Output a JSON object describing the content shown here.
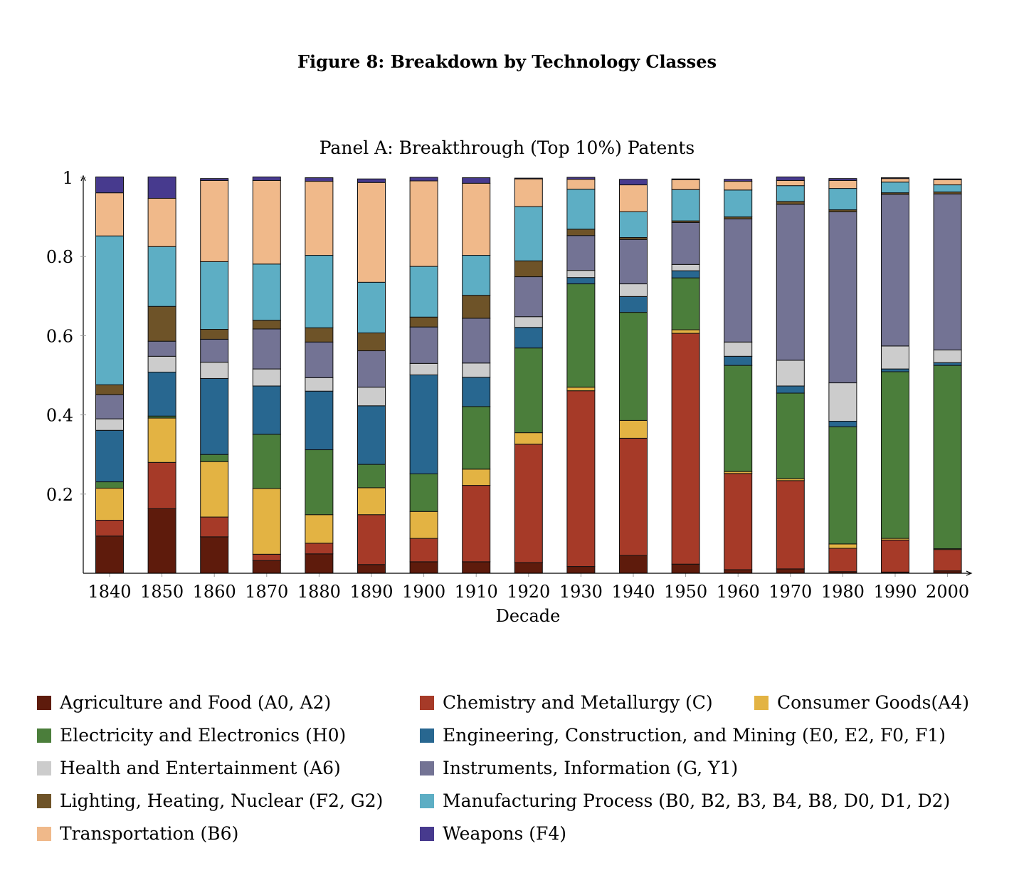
{
  "figure_title": "Figure 8: Breakdown by Technology Classes",
  "chart_data": {
    "type": "bar",
    "stacked": true,
    "title": "Panel A: Breakthrough (Top 10%) Patents",
    "xlabel": "Decade",
    "ylabel": "",
    "ylim": [
      0,
      1
    ],
    "yticks": [
      0.2,
      0.4,
      0.6,
      0.8,
      1
    ],
    "ytick_labels": [
      "0.2",
      "0.4",
      "0.6",
      "0.8",
      "1"
    ],
    "grid": false,
    "legend_position": "bottom",
    "categories": [
      "1840",
      "1850",
      "1860",
      "1870",
      "1880",
      "1890",
      "1900",
      "1910",
      "1920",
      "1930",
      "1940",
      "1950",
      "1960",
      "1970",
      "1980",
      "1990",
      "2000"
    ],
    "series": [
      {
        "name": "Agriculture and Food (A0, A2)",
        "color": "#5e1b0c",
        "values": [
          0.094,
          0.163,
          0.092,
          0.032,
          0.049,
          0.022,
          0.029,
          0.029,
          0.027,
          0.017,
          0.045,
          0.023,
          0.009,
          0.011,
          0.004,
          0.003,
          0.006
        ]
      },
      {
        "name": "Chemistry and Metallurgy (C)",
        "color": "#a63a28",
        "values": [
          0.04,
          0.117,
          0.05,
          0.016,
          0.027,
          0.126,
          0.059,
          0.193,
          0.299,
          0.444,
          0.296,
          0.583,
          0.243,
          0.223,
          0.059,
          0.081,
          0.054
        ]
      },
      {
        "name": "Consumer Goods(A4)",
        "color": "#e3b343",
        "values": [
          0.081,
          0.112,
          0.14,
          0.166,
          0.072,
          0.068,
          0.068,
          0.041,
          0.029,
          0.009,
          0.045,
          0.009,
          0.005,
          0.005,
          0.011,
          0.004,
          0.002
        ]
      },
      {
        "name": "Electricity and Electronics (H0)",
        "color": "#4b7e3b",
        "values": [
          0.016,
          0.005,
          0.018,
          0.137,
          0.164,
          0.059,
          0.095,
          0.158,
          0.214,
          0.261,
          0.273,
          0.131,
          0.268,
          0.216,
          0.296,
          0.421,
          0.463
        ]
      },
      {
        "name": "Engineering, Construction, and Mining (E0, E2, F0, F1)",
        "color": "#286790",
        "values": [
          0.13,
          0.111,
          0.192,
          0.122,
          0.148,
          0.148,
          0.25,
          0.074,
          0.052,
          0.016,
          0.04,
          0.018,
          0.023,
          0.018,
          0.014,
          0.007,
          0.007
        ]
      },
      {
        "name": "Health and Entertainment (A6)",
        "color": "#cccccc",
        "values": [
          0.029,
          0.04,
          0.041,
          0.043,
          0.034,
          0.047,
          0.029,
          0.036,
          0.027,
          0.018,
          0.032,
          0.016,
          0.036,
          0.065,
          0.097,
          0.058,
          0.032
        ]
      },
      {
        "name": "Instruments, Information (G, Y1)",
        "color": "#737394",
        "values": [
          0.061,
          0.038,
          0.058,
          0.101,
          0.09,
          0.092,
          0.092,
          0.113,
          0.101,
          0.088,
          0.112,
          0.106,
          0.311,
          0.394,
          0.432,
          0.383,
          0.394
        ]
      },
      {
        "name": "Lighting, Heating, Nuclear (F2, G2)",
        "color": "#6e5328",
        "values": [
          0.025,
          0.088,
          0.025,
          0.022,
          0.036,
          0.045,
          0.025,
          0.058,
          0.04,
          0.016,
          0.005,
          0.004,
          0.005,
          0.007,
          0.005,
          0.004,
          0.005
        ]
      },
      {
        "name": "Manufacturing Process (B0, B2, B3, B4, B8, D0, D1, D2)",
        "color": "#5daec4",
        "values": [
          0.376,
          0.151,
          0.171,
          0.142,
          0.183,
          0.128,
          0.128,
          0.101,
          0.137,
          0.101,
          0.065,
          0.079,
          0.068,
          0.04,
          0.054,
          0.027,
          0.018
        ]
      },
      {
        "name": "Transportation (B6)",
        "color": "#f0b98a",
        "values": [
          0.109,
          0.122,
          0.205,
          0.211,
          0.187,
          0.252,
          0.216,
          0.182,
          0.07,
          0.025,
          0.068,
          0.025,
          0.022,
          0.013,
          0.02,
          0.009,
          0.013
        ]
      },
      {
        "name": "Weapons (F4)",
        "color": "#473a8e",
        "values": [
          0.04,
          0.054,
          0.005,
          0.009,
          0.009,
          0.009,
          0.009,
          0.014,
          0.002,
          0.005,
          0.014,
          0.002,
          0.005,
          0.009,
          0.005,
          0.002,
          0.002
        ]
      }
    ]
  }
}
